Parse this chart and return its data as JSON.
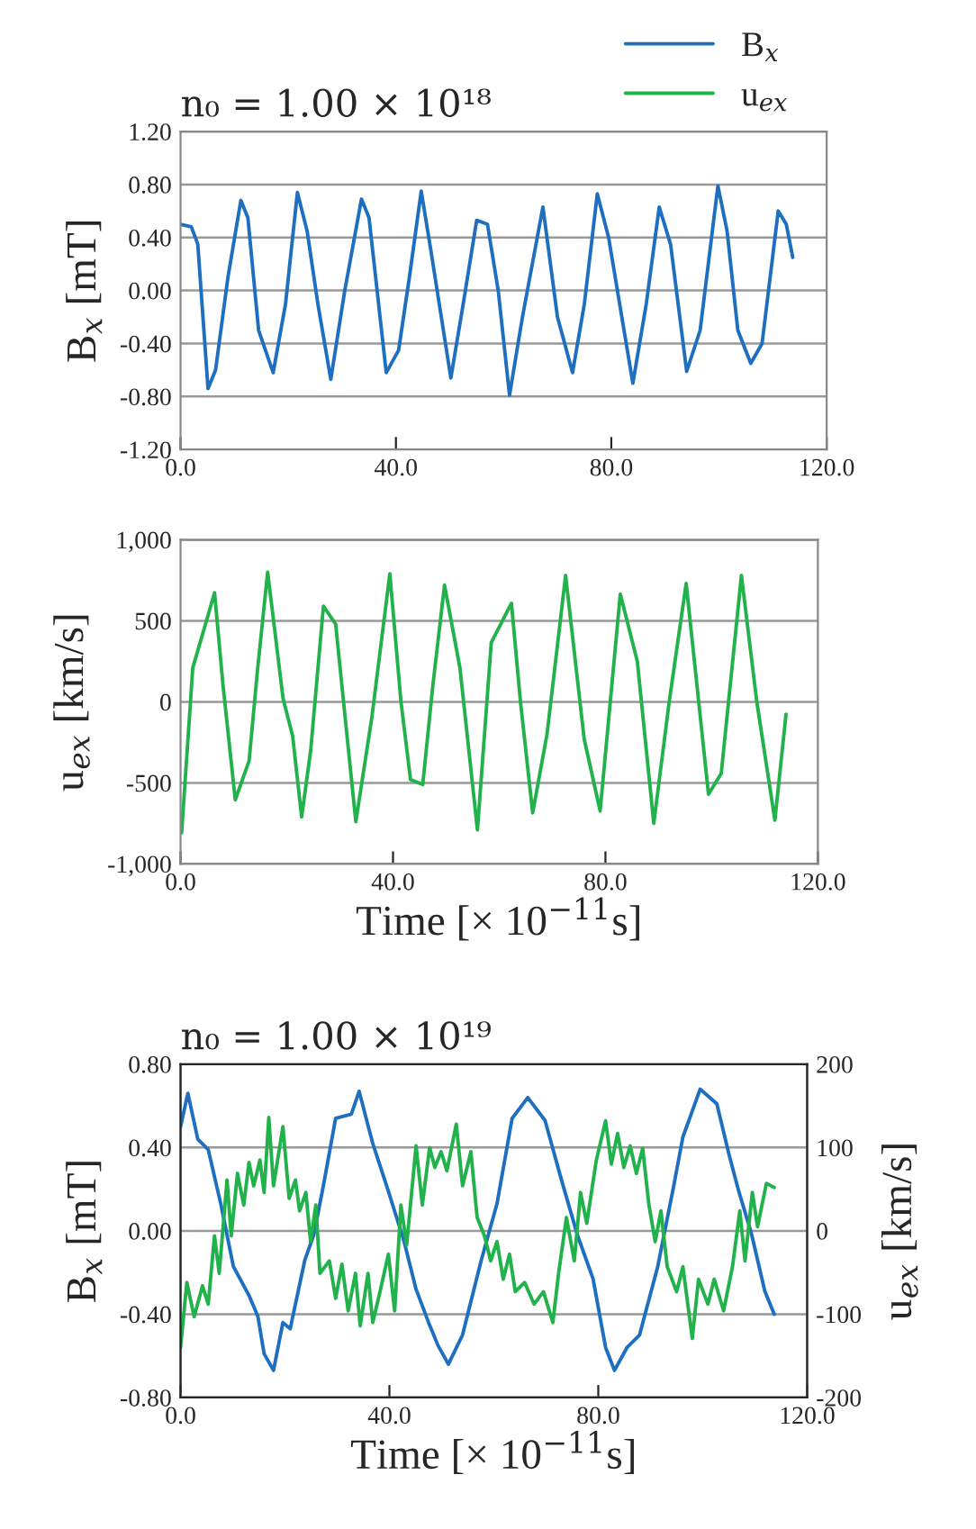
{
  "chart_data": [
    {
      "type": "line",
      "title": "n₀ = 1.00 × 10¹⁸",
      "ylabel": "B$_{x}$ [mT]",
      "legend": "top right",
      "grid": "y",
      "xlim": [
        0,
        120
      ],
      "xticks": [
        {
          "value": 0,
          "label": "0.0"
        },
        {
          "value": 40,
          "label": "40.0"
        },
        {
          "value": 80,
          "label": "80.0"
        },
        {
          "value": 120,
          "label": "120.0"
        }
      ],
      "ylim": [
        -1.2,
        1.2
      ],
      "yticks": [
        {
          "value": -1.2,
          "label": "-1.20"
        },
        {
          "value": -0.8,
          "label": "-0.80"
        },
        {
          "value": -0.4,
          "label": "-0.40"
        },
        {
          "value": 0,
          "label": "0.00"
        },
        {
          "value": 0.4,
          "label": "0.40"
        },
        {
          "value": 0.8,
          "label": "0.80"
        },
        {
          "value": 1.2,
          "label": "1.20"
        }
      ],
      "series": [
        {
          "name": "B$_{x}$",
          "color": "#1f6fc0",
          "x": [
            0,
            2,
            3.2,
            5.1,
            6.5,
            8.8,
            11.2,
            12.5,
            14.5,
            17.2,
            19.5,
            21.7,
            23.5,
            25.5,
            27.9,
            30.5,
            33.6,
            35,
            38.2,
            40.5,
            42.5,
            44.7,
            46.5,
            50.2,
            52.5,
            55,
            57,
            59,
            61.1,
            63.5,
            67.3,
            70,
            72.8,
            75,
            77.4,
            79.5,
            84,
            86.5,
            88.9,
            91,
            94,
            96.5,
            99.8,
            101.5,
            103.5,
            105.9,
            108,
            111,
            112.5,
            113.7
          ],
          "values": [
            0.5,
            0.48,
            0.35,
            -0.74,
            -0.6,
            0.1,
            0.68,
            0.55,
            -0.3,
            -0.62,
            -0.1,
            0.74,
            0.45,
            -0.1,
            -0.67,
            0.0,
            0.69,
            0.55,
            -0.62,
            -0.45,
            0.1,
            0.75,
            0.3,
            -0.66,
            -0.1,
            0.53,
            0.5,
            0.0,
            -0.79,
            -0.2,
            0.63,
            -0.2,
            -0.62,
            -0.1,
            0.73,
            0.4,
            -0.7,
            -0.1,
            0.63,
            0.35,
            -0.61,
            -0.3,
            0.79,
            0.45,
            -0.3,
            -0.55,
            -0.4,
            0.6,
            0.5,
            0.25
          ]
        }
      ]
    },
    {
      "type": "line",
      "xlabel": "Time [× 10$^{−11}$s]",
      "ylabel": "u$_{ex}$ [km/s]",
      "legend": "top right",
      "grid": "y",
      "xlim": [
        0,
        120
      ],
      "xticks": [
        {
          "value": 0,
          "label": "0.0"
        },
        {
          "value": 40,
          "label": "40.0"
        },
        {
          "value": 80,
          "label": "80.0"
        },
        {
          "value": 120,
          "label": "120.0"
        }
      ],
      "ylim": [
        -1000,
        1000
      ],
      "yticks": [
        {
          "value": -1000,
          "label": "-1,000"
        },
        {
          "value": -500,
          "label": "-500"
        },
        0,
        500,
        {
          "value": 1000,
          "label": "1,000"
        }
      ],
      "series": [
        {
          "name": "u$_{ex}$",
          "color": "#22b24c",
          "x": [
            0.2,
            2.3,
            4.7,
            6.4,
            8,
            10.3,
            12.9,
            14.5,
            16.4,
            19.3,
            21.1,
            22.8,
            24.5,
            26.9,
            29.2,
            31,
            33,
            36,
            39.4,
            41.5,
            43.3,
            45.6,
            47.5,
            49.7,
            52.6,
            55.9,
            58.5,
            62.3,
            64,
            66.3,
            69,
            72.5,
            76,
            79,
            82.8,
            86,
            89.1,
            92,
            95.2,
            99.4,
            101.8,
            105.6,
            108.5,
            111.9,
            114
          ],
          "values": [
            -808,
            210,
            480,
            673,
            100,
            -605,
            -365,
            200,
            800,
            20,
            -210,
            -710,
            -300,
            590,
            480,
            -100,
            -740,
            -100,
            790,
            0,
            -480,
            -510,
            100,
            720,
            210,
            -790,
            365,
            608,
            0,
            -685,
            -200,
            780,
            -230,
            -673,
            665,
            250,
            -750,
            0,
            730,
            -570,
            -442,
            780,
            0,
            -730,
            -77
          ]
        }
      ]
    },
    {
      "type": "line",
      "title": "n₀ = 1.00 × 10¹⁹",
      "xlabel": "Time [× 10$^{−11}$s]",
      "ylabel": "B$_{x}$ [mT]",
      "y2label": "u$_{ex}$ [km/s]",
      "grid": "y",
      "xlim": [
        0,
        120
      ],
      "xticks": [
        {
          "value": 0,
          "label": "0.0"
        },
        {
          "value": 40,
          "label": "40.0"
        },
        {
          "value": 80,
          "label": "80.0"
        },
        {
          "value": 120,
          "label": "120.0"
        }
      ],
      "ylim": [
        -0.8,
        0.8
      ],
      "yticks": [
        {
          "value": -0.8,
          "label": "-0.80"
        },
        {
          "value": -0.4,
          "label": "-0.40"
        },
        {
          "value": 0,
          "label": "0.00"
        },
        {
          "value": 0.4,
          "label": "0.40"
        },
        {
          "value": 0.8,
          "label": "0.80"
        }
      ],
      "y2lim": [
        -200,
        200
      ],
      "y2ticks": [
        -200,
        -100,
        0,
        100,
        200
      ],
      "series": [
        {
          "color": "#1f6fc0",
          "x": [
            0,
            1.4,
            3.3,
            5.3,
            7.7,
            10.1,
            13.1,
            14.8,
            16,
            17.8,
            19.6,
            21,
            23.8,
            25.5,
            27.3,
            29.7,
            32.7,
            34.2,
            36.8,
            39.8,
            42.8,
            45.1,
            47.5,
            49.3,
            51.3,
            54,
            57.6,
            60.6,
            63.5,
            66.5,
            69.8,
            73,
            76,
            79,
            81.4,
            83.1,
            85.5,
            87.9,
            91.4,
            94.4,
            96.2,
            99.5,
            102.7,
            105.1,
            106.9,
            109.3,
            111.9,
            113.7
          ],
          "values": [
            0.5,
            0.66,
            0.44,
            0.39,
            0.13,
            -0.17,
            -0.31,
            -0.41,
            -0.59,
            -0.67,
            -0.44,
            -0.47,
            -0.14,
            -0.02,
            0.21,
            0.54,
            0.56,
            0.67,
            0.42,
            0.19,
            -0.05,
            -0.28,
            -0.44,
            -0.55,
            -0.64,
            -0.5,
            -0.14,
            0.13,
            0.54,
            0.64,
            0.53,
            0.24,
            -0.02,
            -0.23,
            -0.56,
            -0.67,
            -0.56,
            -0.5,
            -0.17,
            0.21,
            0.45,
            0.68,
            0.61,
            0.36,
            0.19,
            -0.01,
            -0.29,
            -0.4
          ]
        },
        {
          "color": "#22b24c",
          "axis": "y2",
          "x": [
            0,
            1.2,
            2.6,
            4.2,
            5.3,
            6.5,
            7.4,
            8.9,
            9.7,
            10.9,
            12.1,
            13.1,
            14,
            15.2,
            16,
            16.9,
            17.8,
            19.6,
            20.8,
            22,
            22.8,
            24,
            24.9,
            25.9,
            26.7,
            28.5,
            29.7,
            30.9,
            32.1,
            33.5,
            34.4,
            35.9,
            36.8,
            38.2,
            39.8,
            41,
            42.2,
            43.3,
            45.1,
            46.3,
            47.7,
            48.7,
            49.9,
            51,
            52.8,
            54,
            55.6,
            56.8,
            58.2,
            59.4,
            60.6,
            61.8,
            63,
            64.1,
            65.9,
            67.7,
            69.5,
            71.3,
            72.4,
            73.9,
            75.4,
            76.6,
            77.8,
            79.6,
            81.4,
            82.5,
            83.7,
            84.9,
            86.1,
            87.3,
            88.5,
            89.7,
            90.9,
            92,
            93.2,
            95,
            96.2,
            98,
            99.2,
            101,
            102.2,
            104,
            105.7,
            107.1,
            108.1,
            109.5,
            110.5,
            112.2,
            113.7
          ],
          "values": [
            -140,
            -62,
            -103,
            -66,
            -88,
            -6,
            -51,
            61,
            -6,
            69,
            31,
            82,
            54,
            85,
            46,
            136,
            54,
            125,
            39,
            61,
            24,
            46,
            -13,
            31,
            -51,
            -36,
            -81,
            -40,
            -96,
            -51,
            -114,
            -51,
            -110,
            -73,
            -28,
            -96,
            31,
            -17,
            102,
            31,
            100,
            76,
            95,
            72,
            128,
            54,
            95,
            16,
            -6,
            -36,
            -13,
            -58,
            -28,
            -73,
            -62,
            -88,
            -73,
            -110,
            -51,
            16,
            -36,
            46,
            9,
            84,
            132,
            80,
            117,
            76,
            102,
            69,
            99,
            31,
            -13,
            24,
            -43,
            -73,
            -43,
            -129,
            -58,
            -88,
            -58,
            -96,
            -43,
            24,
            -36,
            46,
            5,
            57,
            52
          ]
        }
      ]
    }
  ]
}
